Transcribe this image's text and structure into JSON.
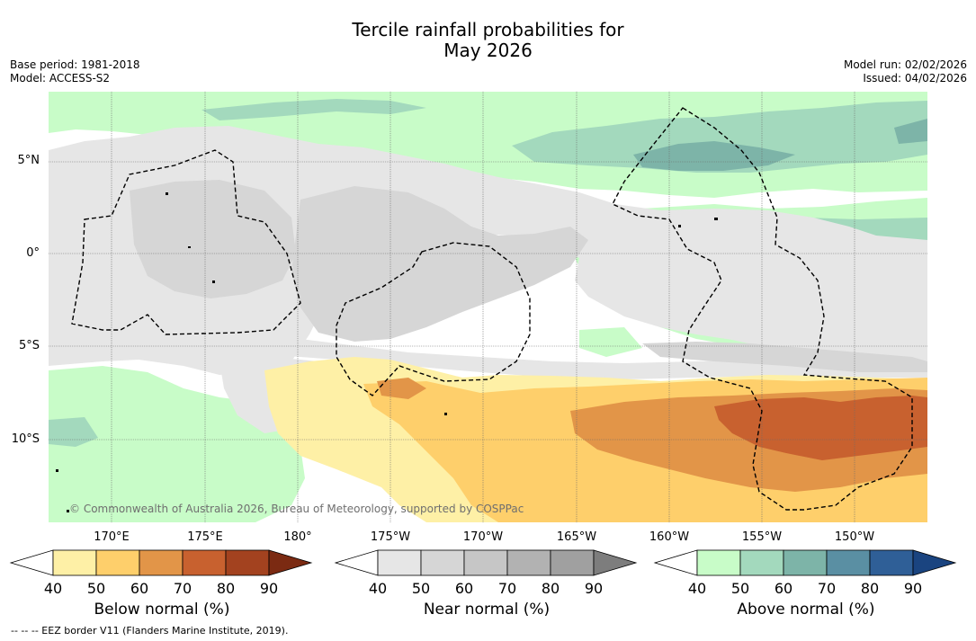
{
  "title": {
    "line1": "Tercile rainfall probabilities for",
    "line2": "May 2026"
  },
  "meta": {
    "base_period": "Base period: 1981-2018",
    "model": "Model: ACCESS-S2",
    "model_run": "Model run: 02/02/2026",
    "issued": "Issued: 04/02/2026"
  },
  "map": {
    "lat_labels": [
      "5°N",
      "0°",
      "5°S",
      "10°S"
    ],
    "lon_labels": [
      "170°E",
      "175°E",
      "180°",
      "175°W",
      "170°W",
      "165°W",
      "160°W",
      "155°W",
      "150°W"
    ],
    "attribution": "© Commonwealth of Australia 2026, Bureau of Meteorology, supported by COSPPac"
  },
  "legends": [
    {
      "id": "below",
      "title": "Below normal (%)",
      "ticks": [
        "40",
        "50",
        "60",
        "70",
        "80",
        "90"
      ],
      "colors": [
        "#ffffff",
        "#fef0a6",
        "#fecf6b",
        "#e29548",
        "#c8612f",
        "#a3421f",
        "#7b2a12"
      ]
    },
    {
      "id": "near",
      "title": "Near normal (%)",
      "ticks": [
        "40",
        "50",
        "60",
        "70",
        "80",
        "90"
      ],
      "colors": [
        "#ffffff",
        "#e6e6e6",
        "#d6d6d6",
        "#c6c6c6",
        "#b2b2b2",
        "#a0a0a0",
        "#7d7d7d"
      ]
    },
    {
      "id": "above",
      "title": "Above normal (%)",
      "ticks": [
        "40",
        "50",
        "60",
        "70",
        "80",
        "90"
      ],
      "colors": [
        "#ffffff",
        "#c8fcc8",
        "#a3d9bd",
        "#7db4a8",
        "#5a8fa3",
        "#2f5f97",
        "#1a4480"
      ]
    }
  ],
  "footnote": "--  --  -- EEZ border V11 (Flanders Marine Institute, 2019)."
}
